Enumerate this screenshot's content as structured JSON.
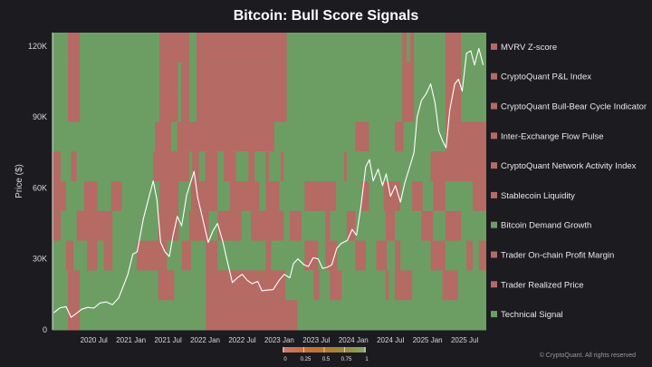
{
  "chart_data": {
    "type": "heatmap",
    "title": "Bitcoin: Bull Score Signals",
    "ylabel": "Price ($)",
    "xlabel": "",
    "time_unit": "months since 2020 Jan",
    "xlim": [
      -0.7,
      69.5
    ],
    "ylim": [
      0,
      125.7
    ],
    "y_unit": "thousand USD",
    "yticks": [
      {
        "v": 0,
        "label": "0"
      },
      {
        "v": 30,
        "label": "30K"
      },
      {
        "v": 60,
        "label": "60K"
      },
      {
        "v": 90,
        "label": "90K"
      },
      {
        "v": 120,
        "label": "120K"
      }
    ],
    "xticks": [
      {
        "v": 6,
        "label": "2020 Jul"
      },
      {
        "v": 12,
        "label": "2021 Jan"
      },
      {
        "v": 18,
        "label": "2021 Jul"
      },
      {
        "v": 24,
        "label": "2022 Jan"
      },
      {
        "v": 30,
        "label": "2022 Jul"
      },
      {
        "v": 36,
        "label": "2023 Jan"
      },
      {
        "v": 42,
        "label": "2023 Jul"
      },
      {
        "v": 48,
        "label": "2024 Jan"
      },
      {
        "v": 54,
        "label": "2024 Jul"
      },
      {
        "v": 60,
        "label": "2025 Jan"
      },
      {
        "v": 66,
        "label": "2025 Jul"
      }
    ],
    "colors": {
      "bear": "#b56a64",
      "bull": "#6c9e64",
      "price": "#ffffff"
    },
    "colorbar": {
      "ticks": [
        "0",
        "0.25",
        "0.5",
        "0.75",
        "1"
      ],
      "colors": [
        "#c97a72",
        "#c8703c",
        "#b8782e",
        "#9a8a3e",
        "#7fa86a"
      ]
    },
    "legend_position": "right",
    "rows": [
      {
        "name": "MVRV Z-score",
        "status": 0,
        "bear_segments": [
          [
            1.8,
            3.7
          ],
          [
            16.6,
            21.4
          ],
          [
            22.6,
            37.2
          ],
          [
            55.9,
            56.6
          ],
          [
            57.2,
            57.8
          ],
          [
            62.9,
            65.4
          ]
        ]
      },
      {
        "name": "CryptoQuant P&L Index",
        "status": 0,
        "bear_segments": [
          [
            1.8,
            3.7
          ],
          [
            16.6,
            19.6
          ],
          [
            20.1,
            21.4
          ],
          [
            22.6,
            37.2
          ],
          [
            55.9,
            57.8
          ],
          [
            62.9,
            65.4
          ]
        ]
      },
      {
        "name": "CryptoQuant Bull-Bear Cycle Indicator",
        "status": 0,
        "bear_segments": [
          [
            1.8,
            3.7
          ],
          [
            16.6,
            19.6
          ],
          [
            20.1,
            21.4
          ],
          [
            22.6,
            37.2
          ],
          [
            55.9,
            57.8
          ],
          [
            62.9,
            65.4
          ]
        ]
      },
      {
        "name": "Inter-Exchange Flow Pulse",
        "status": 0,
        "bear_segments": [
          [
            15.9,
            18.5
          ],
          [
            19.5,
            35.2
          ],
          [
            48.3,
            50.5
          ],
          [
            54.7,
            56.1
          ],
          [
            62.9,
            69.5
          ]
        ]
      },
      {
        "name": "CryptoQuant Network Activity Index",
        "status": 0,
        "bear_segments": [
          [
            -0.7,
            0.6
          ],
          [
            2.3,
            3.2
          ],
          [
            15.6,
            21.4
          ],
          [
            21.9,
            23
          ],
          [
            24,
            26
          ],
          [
            27,
            29
          ],
          [
            31,
            32
          ],
          [
            33.8,
            34.3
          ],
          [
            36.2,
            36.7
          ],
          [
            46.5,
            46.9
          ],
          [
            60.5,
            69.5
          ]
        ]
      },
      {
        "name": "Stablecoin Liquidity",
        "status": 0,
        "bear_segments": [
          [
            -0.7,
            1.5
          ],
          [
            4.4,
            6.6
          ],
          [
            8.8,
            10.5
          ],
          [
            16.6,
            19.7
          ],
          [
            21.7,
            26
          ],
          [
            28,
            32.8
          ],
          [
            33.8,
            36
          ],
          [
            40.1,
            45.2
          ],
          [
            49.3,
            50.5
          ],
          [
            52.9,
            55.6
          ],
          [
            57.5,
            59.2
          ],
          [
            60.9,
            62.9
          ],
          [
            67.3,
            69.5
          ]
        ]
      },
      {
        "name": "Bitcoin Demand Growth",
        "status": 1,
        "bear_segments": [
          [
            -0.7,
            0.6
          ],
          [
            3.2,
            9
          ],
          [
            16.4,
            19.7
          ],
          [
            21.4,
            24.6
          ],
          [
            26,
            29.9
          ],
          [
            31.4,
            36.7
          ],
          [
            37.7,
            39.6
          ],
          [
            43.4,
            44.2
          ],
          [
            46.9,
            48.3
          ],
          [
            53.2,
            54.7
          ],
          [
            59,
            60.9
          ],
          [
            62.9,
            65.4
          ]
        ]
      },
      {
        "name": "Trader On-chain Profit Margin",
        "status": 0,
        "bear_segments": [
          [
            1.5,
            2.7
          ],
          [
            4.9,
            6.6
          ],
          [
            7.6,
            9
          ],
          [
            12.9,
            17.8
          ],
          [
            20.2,
            21.7
          ],
          [
            24.1,
            26
          ],
          [
            33.8,
            34.7
          ],
          [
            40.1,
            42.3
          ],
          [
            43.5,
            45.4
          ],
          [
            48.3,
            50
          ],
          [
            51.7,
            53.4
          ],
          [
            54.7,
            55.6
          ],
          [
            60.5,
            62.9
          ],
          [
            66.3,
            67.3
          ],
          [
            68.3,
            69.5
          ]
        ]
      },
      {
        "name": "Trader Realized Price",
        "status": 0,
        "bear_segments": [
          [
            1.8,
            3.7
          ],
          [
            16.4,
            19
          ],
          [
            24.1,
            37
          ],
          [
            41.6,
            42.5
          ],
          [
            44.2,
            46.1
          ],
          [
            53.2,
            53.7
          ],
          [
            54.7,
            57.5
          ],
          [
            62.4,
            64.9
          ]
        ]
      },
      {
        "name": "Technical Signal",
        "status": 1,
        "bear_segments": [
          [
            1.8,
            3.7
          ],
          [
            24.1,
            38.9
          ]
        ]
      }
    ],
    "price_series": [
      [
        -0.5,
        7.2
      ],
      [
        0.5,
        9.3
      ],
      [
        1.5,
        9.8
      ],
      [
        2.3,
        5.3
      ],
      [
        3,
        6.6
      ],
      [
        4,
        8.7
      ],
      [
        5,
        9.5
      ],
      [
        6,
        9.2
      ],
      [
        7,
        11.4
      ],
      [
        8,
        11.8
      ],
      [
        9,
        10.6
      ],
      [
        10,
        13.5
      ],
      [
        10.8,
        18.8
      ],
      [
        11.5,
        23.5
      ],
      [
        12.3,
        32
      ],
      [
        13,
        33
      ],
      [
        14,
        47
      ],
      [
        15,
        57
      ],
      [
        15.6,
        63
      ],
      [
        16.2,
        55
      ],
      [
        16.8,
        37
      ],
      [
        17.5,
        33
      ],
      [
        18.2,
        31
      ],
      [
        18.8,
        40
      ],
      [
        19.5,
        48
      ],
      [
        20.2,
        44
      ],
      [
        21,
        57
      ],
      [
        22.2,
        67
      ],
      [
        22.8,
        56
      ],
      [
        23.6,
        47
      ],
      [
        24.5,
        37
      ],
      [
        25.3,
        42
      ],
      [
        26,
        45
      ],
      [
        26.8,
        38
      ],
      [
        27.5,
        30
      ],
      [
        28.4,
        20
      ],
      [
        29.2,
        22
      ],
      [
        30,
        23.5
      ],
      [
        30.8,
        21
      ],
      [
        31.6,
        19.5
      ],
      [
        32.5,
        20.5
      ],
      [
        33.2,
        16.5
      ],
      [
        34,
        16.8
      ],
      [
        35,
        17
      ],
      [
        36,
        21
      ],
      [
        36.8,
        23.5
      ],
      [
        37.7,
        22
      ],
      [
        38.3,
        28
      ],
      [
        39,
        30
      ],
      [
        40,
        27.5
      ],
      [
        40.7,
        26.8
      ],
      [
        41.5,
        30.5
      ],
      [
        42.3,
        30
      ],
      [
        43,
        26
      ],
      [
        43.8,
        26.5
      ],
      [
        44.5,
        27.5
      ],
      [
        45.3,
        34.5
      ],
      [
        46,
        36.5
      ],
      [
        47,
        37.8
      ],
      [
        47.8,
        42.5
      ],
      [
        48.5,
        40
      ],
      [
        49.2,
        52
      ],
      [
        50,
        69
      ],
      [
        50.6,
        72
      ],
      [
        51.2,
        63
      ],
      [
        52,
        68
      ],
      [
        52.7,
        61
      ],
      [
        53.3,
        66
      ],
      [
        54,
        56.5
      ],
      [
        54.8,
        61
      ],
      [
        55.6,
        54
      ],
      [
        56.3,
        62
      ],
      [
        57,
        68
      ],
      [
        57.8,
        75
      ],
      [
        58.3,
        90
      ],
      [
        59,
        97
      ],
      [
        59.8,
        100
      ],
      [
        60.5,
        104
      ],
      [
        61.2,
        96
      ],
      [
        61.8,
        84
      ],
      [
        62.4,
        80
      ],
      [
        63,
        77
      ],
      [
        63.6,
        93
      ],
      [
        64.4,
        104
      ],
      [
        65,
        106
      ],
      [
        65.6,
        101
      ],
      [
        66.3,
        117
      ],
      [
        67,
        118
      ],
      [
        67.6,
        112
      ],
      [
        68.3,
        119
      ],
      [
        69,
        112
      ]
    ]
  },
  "footer": {
    "copyright": "© CryptoQuant. All rights reserved"
  }
}
